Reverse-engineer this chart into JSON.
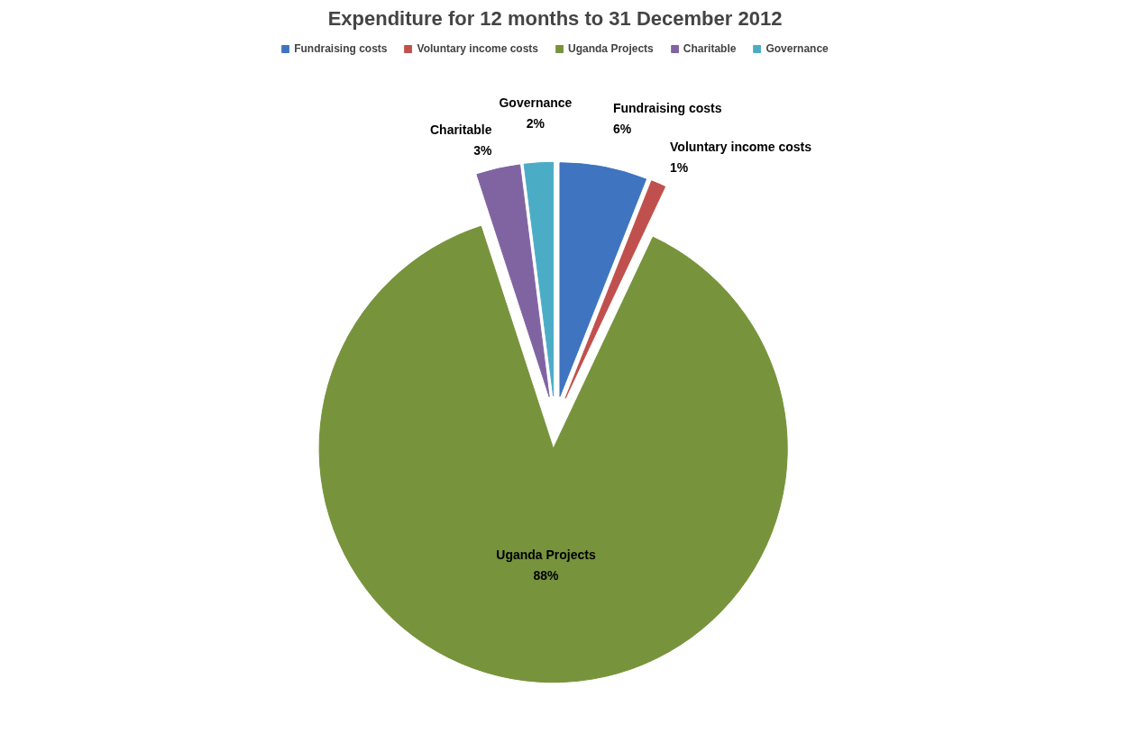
{
  "chart_data": {
    "type": "pie",
    "title": "Expenditure for 12 months to 31 December 2012",
    "categories": [
      "Fundraising costs",
      "Voluntary income costs",
      "Uganda Projects",
      "Charitable",
      "Governance"
    ],
    "values": [
      6,
      1,
      88,
      3,
      2
    ],
    "colors": [
      "#3f74c0",
      "#c0504d",
      "#77933c",
      "#8064a2",
      "#4bacc6"
    ],
    "value_labels": [
      "6%",
      "1%",
      "88%",
      "3%",
      "2%"
    ],
    "legend": "top"
  }
}
